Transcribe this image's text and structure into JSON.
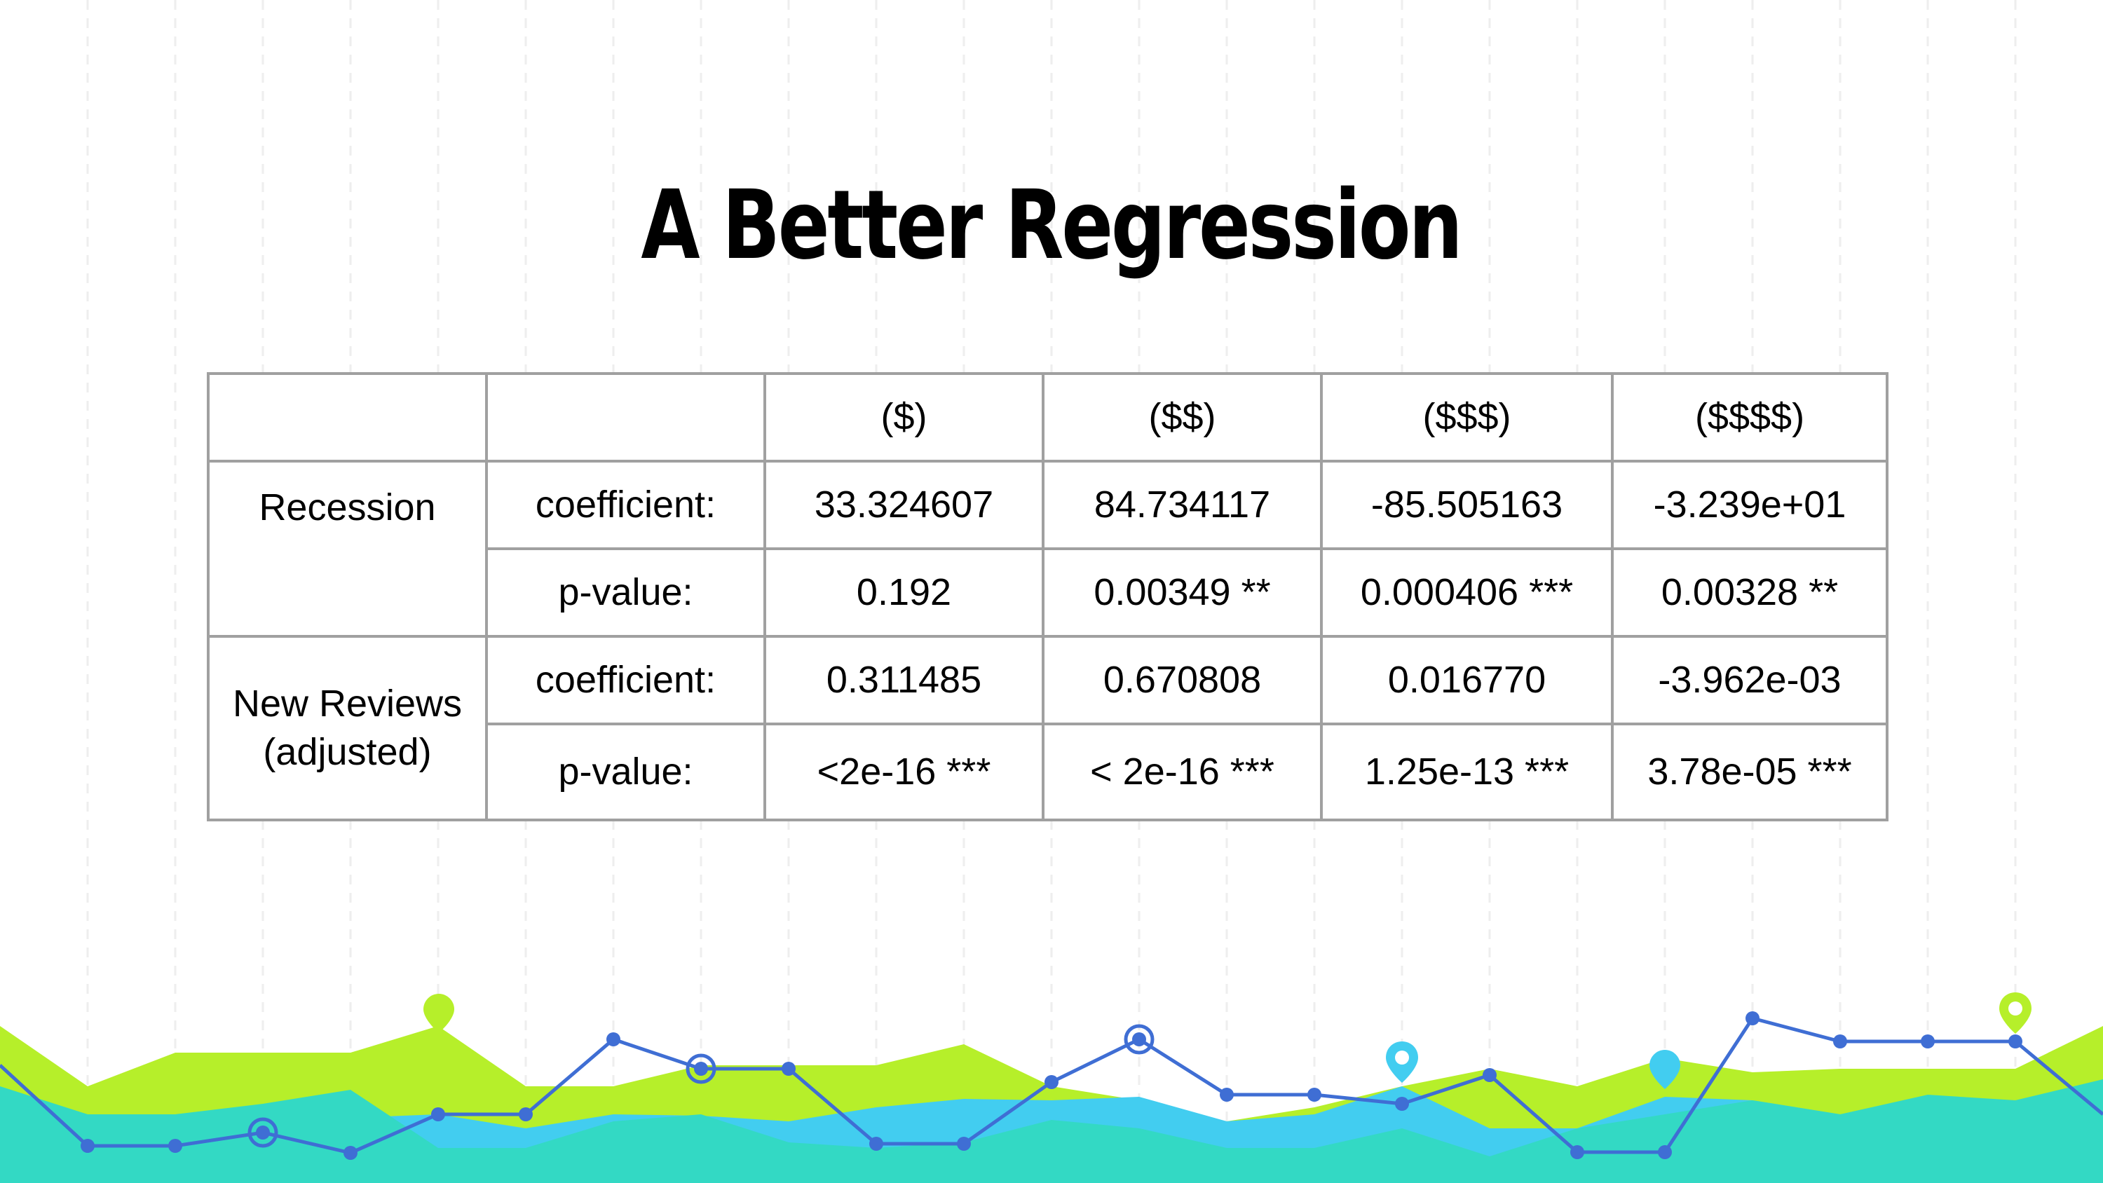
{
  "slide": {
    "title": "A Better Regression"
  },
  "table": {
    "headers": [
      "",
      "",
      "($)",
      "($$)",
      "($$$)",
      "($$$$)"
    ],
    "groups": [
      {
        "label": "Recession",
        "rows": [
          {
            "stat": "coefficient:",
            "values": [
              "33.324607",
              "84.734117",
              "-85.505163",
              "-3.239e+01"
            ]
          },
          {
            "stat": "p-value:",
            "values": [
              "0.192",
              "0.00349 **",
              "0.000406 ***",
              "0.00328 **"
            ]
          }
        ]
      },
      {
        "label": "New Reviews (adjusted)",
        "rows": [
          {
            "stat": "coefficient:",
            "values": [
              "0.311485",
              "0.670808",
              "0.016770",
              "-3.962e-03"
            ]
          },
          {
            "stat": "p-value:",
            "values": [
              "<2e-16 ***",
              "< 2e-16 ***",
              "1.25e-13 ***",
              "3.78e-05 ***"
            ]
          }
        ]
      }
    ]
  },
  "colors": {
    "lime": "#b6ef2a",
    "teal": "#33d9c4",
    "sky": "#42cdf0",
    "line_blue": "#3f6ed4",
    "border_gray": "#a0a0a0",
    "grid_gray": "#eeeeee"
  },
  "decor": {
    "icons": [
      "map-pin-icon",
      "map-pin-icon",
      "map-pin-icon",
      "map-pin-icon"
    ]
  }
}
